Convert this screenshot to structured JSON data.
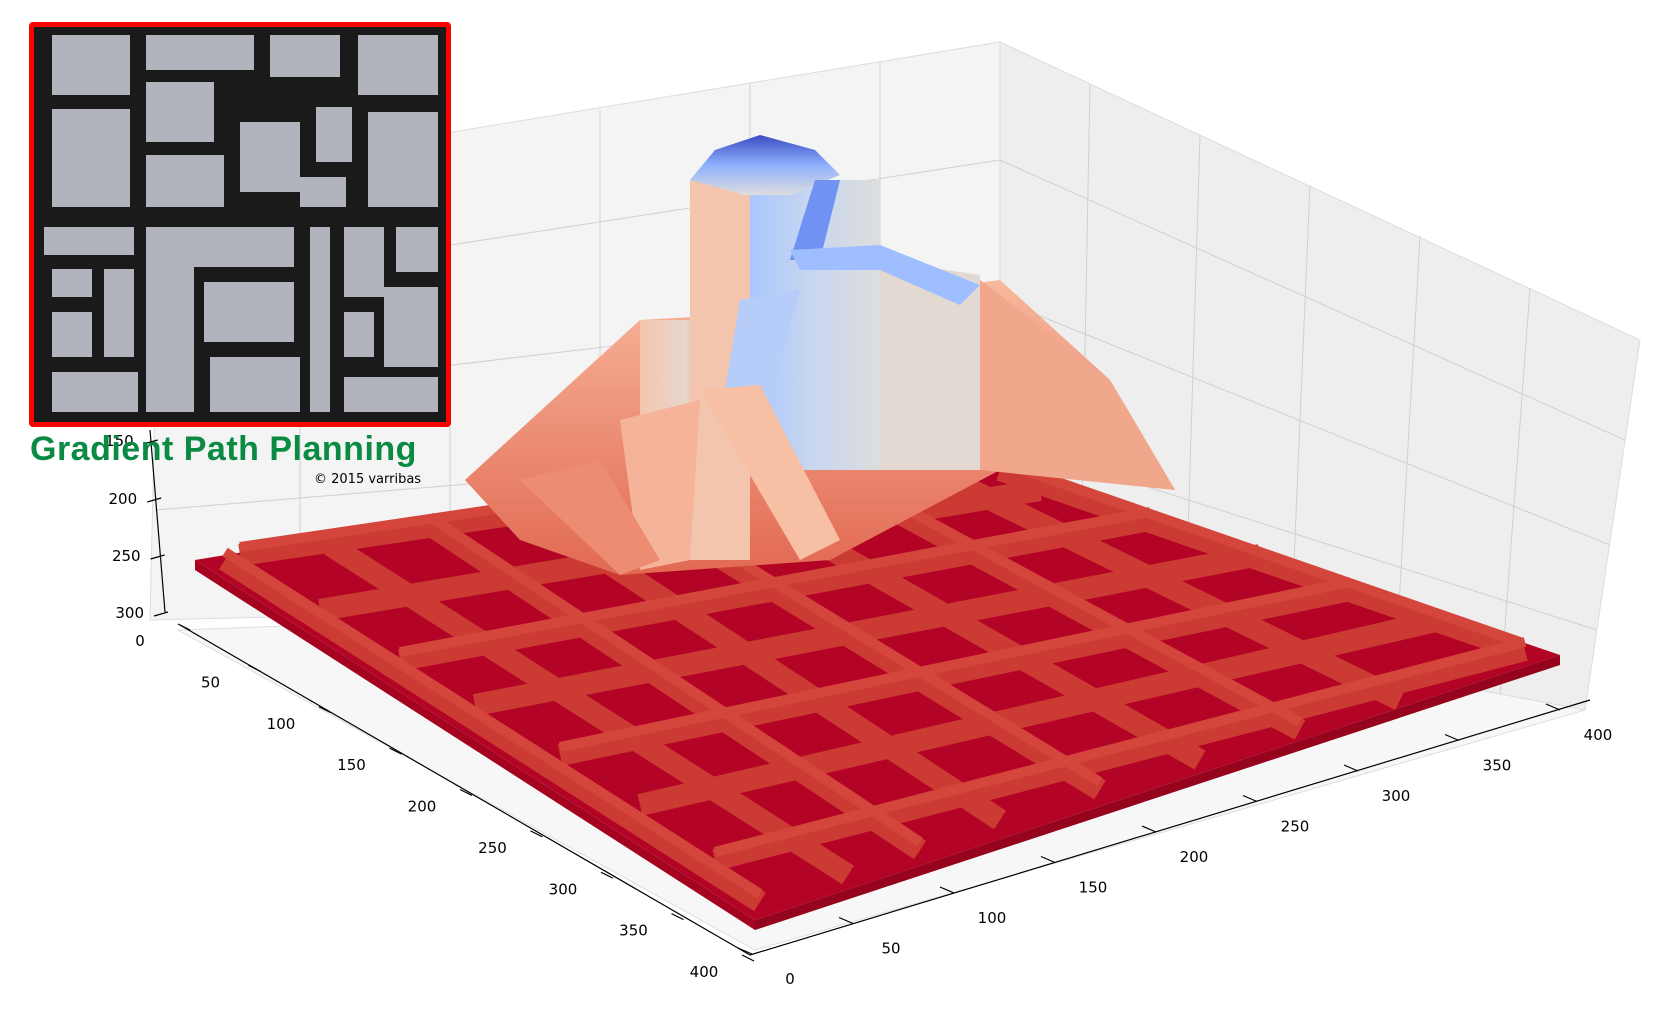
{
  "title": "Gradient Path Planning",
  "copyright": "© 2015 varribas",
  "colors": {
    "inset_frame": "#ff0000",
    "title": "#0b8a43",
    "floor": "#b40426",
    "walls": "#c9302c",
    "peak": "#3b4cc0",
    "mid": "#dddddd",
    "maze_free": "#b2b4bd",
    "maze_wall": "#1a1a1a"
  },
  "chart_data": {
    "type": "surface",
    "colormap": "coolwarm",
    "x_axis": {
      "ticks": [
        0,
        50,
        100,
        150,
        200,
        250,
        300,
        350,
        400
      ],
      "range": [
        0,
        400
      ]
    },
    "y_axis": {
      "ticks": [
        0,
        50,
        100,
        150,
        200,
        250,
        300,
        350,
        400
      ],
      "range": [
        0,
        400
      ]
    },
    "z_axis": {
      "ticks_visible": [
        "150",
        "200",
        "250",
        "300"
      ],
      "inverted": true
    },
    "grid": true,
    "surface_summary": {
      "floor_level": "max (red)",
      "peak_region": "goal, min value (blue)",
      "description": "gradient field over maze; corridors form raised ridges descending from goal peak"
    }
  },
  "inset": {
    "name": "maze-map",
    "border_color": "#ff0000"
  }
}
